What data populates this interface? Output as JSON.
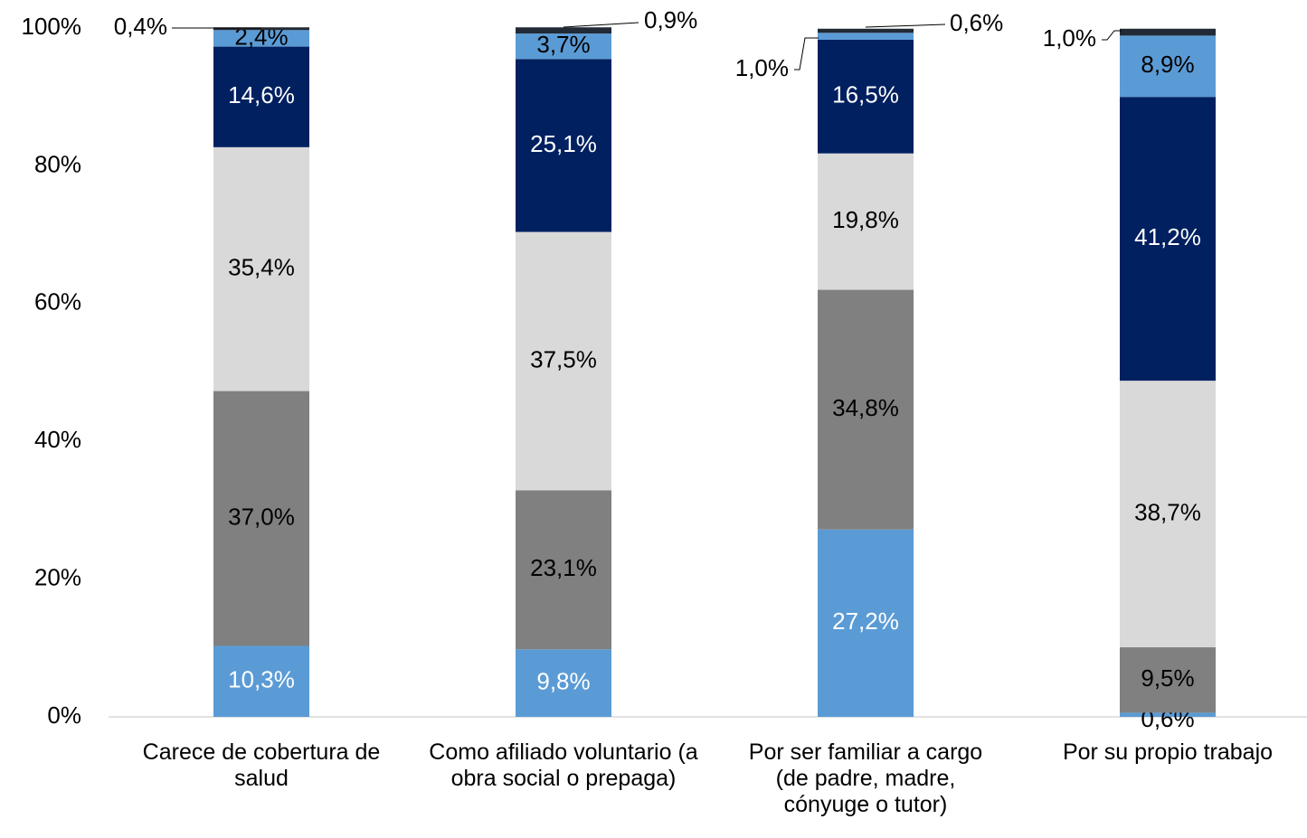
{
  "chart_data": {
    "type": "stacked_bar",
    "categories": [
      "Carece de cobertura de salud",
      "Como afiliado voluntario (a obra social o prepaga)",
      "Por ser familiar a cargo (de padre, madre, cónyuge o tutor)",
      "Por su propio trabajo"
    ],
    "series": [
      {
        "color": "#5b9bd5",
        "values": [
          10.3,
          9.8,
          27.2,
          0.6
        ],
        "value_labels": [
          "10,3%",
          "9,8%",
          "27,2%",
          "0,6%"
        ]
      },
      {
        "color": "#808080",
        "values": [
          37.0,
          23.1,
          34.8,
          9.5
        ],
        "value_labels": [
          "37,0%",
          "23,1%",
          "34,8%",
          "9,5%"
        ]
      },
      {
        "color": "#d9d9d9",
        "values": [
          35.4,
          37.5,
          19.8,
          38.7
        ],
        "value_labels": [
          "35,4%",
          "37,5%",
          "19,8%",
          "38,7%"
        ]
      },
      {
        "color": "#002060",
        "values": [
          14.6,
          25.1,
          16.5,
          41.2
        ],
        "value_labels": [
          "14,6%",
          "25,1%",
          "16,5%",
          "41,2%"
        ]
      },
      {
        "color": "#5b9bd5",
        "values": [
          2.4,
          3.7,
          1.0,
          8.9
        ],
        "value_labels": [
          "2,4%",
          "3,7%",
          "1,0%",
          "8,9%"
        ]
      },
      {
        "color": "#222a35",
        "values": [
          0.4,
          0.9,
          0.6,
          1.0
        ],
        "value_labels": [
          "0,4%",
          "0,9%",
          "0,6%",
          "1,0%"
        ]
      }
    ],
    "ylim": [
      0,
      100
    ],
    "yticks": [
      {
        "value": 0,
        "label": "0%"
      },
      {
        "value": 20,
        "label": "20%"
      },
      {
        "value": 40,
        "label": "40%"
      },
      {
        "value": 60,
        "label": "60%"
      },
      {
        "value": 80,
        "label": "80%"
      },
      {
        "value": 100,
        "label": "100%"
      }
    ]
  }
}
